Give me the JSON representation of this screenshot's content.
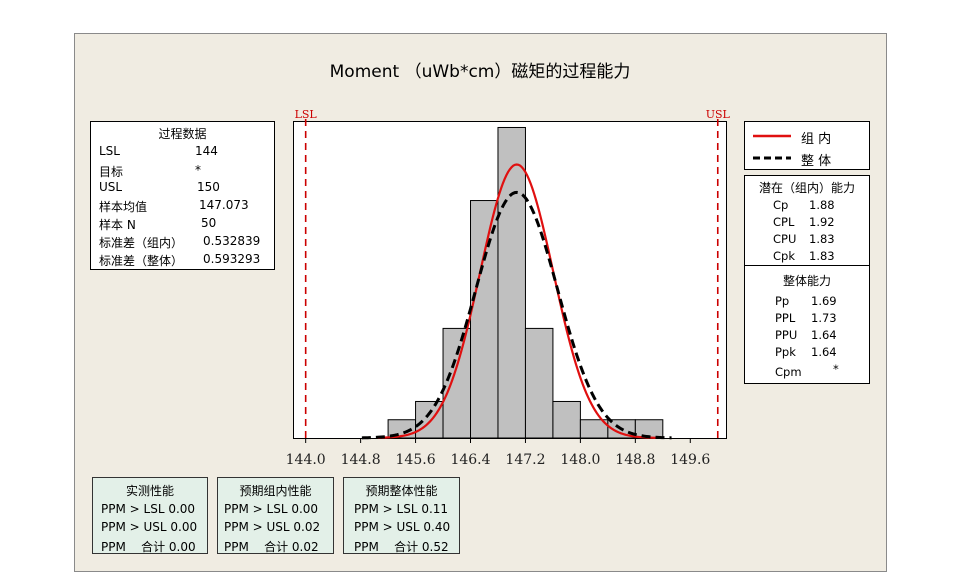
{
  "title": "Moment （uWb*cm）磁矩的过程能力",
  "process_data": {
    "header": "过程数据",
    "rows": [
      {
        "label": "LSL",
        "value": "144"
      },
      {
        "label": "目标",
        "value": "*"
      },
      {
        "label": "USL",
        "value": "150"
      },
      {
        "label": "样本均值",
        "value": "147.073"
      },
      {
        "label": "样本 N",
        "value": "50"
      },
      {
        "label": "标准差（组内）",
        "value": "0.532839"
      },
      {
        "label": "标准差（整体）",
        "value": "0.593293"
      }
    ]
  },
  "legend": {
    "items": [
      {
        "label": "组 内",
        "color": "#e01010",
        "style": "solid"
      },
      {
        "label": "整 体",
        "color": "#000000",
        "style": "dashed"
      }
    ]
  },
  "potential": {
    "header": "潜在（组内）能力",
    "rows": [
      {
        "label": "Cp",
        "value": "1.88"
      },
      {
        "label": "CPL",
        "value": "1.92"
      },
      {
        "label": "CPU",
        "value": "1.83"
      },
      {
        "label": "Cpk",
        "value": "1.83"
      }
    ]
  },
  "overall": {
    "header": "整体能力",
    "rows": [
      {
        "label": "Pp",
        "value": "1.69"
      },
      {
        "label": "PPL",
        "value": "1.73"
      },
      {
        "label": "PPU",
        "value": "1.64"
      },
      {
        "label": "Ppk",
        "value": "1.64"
      },
      {
        "label": "Cpm",
        "value": "*"
      }
    ]
  },
  "performance": [
    {
      "header": "实测性能",
      "rows": [
        "PPM > LSL 0.00",
        "PPM > USL 0.00",
        "PPM    合计 0.00"
      ]
    },
    {
      "header": "预期组内性能",
      "rows": [
        "PPM > LSL 0.00",
        "PPM > USL 0.02",
        "PPM    合计 0.02"
      ]
    },
    {
      "header": "预期整体性能",
      "rows": [
        "PPM > LSL 0.11",
        "PPM > USL 0.40",
        "PPM    合计 0.52"
      ]
    }
  ],
  "chart_data": {
    "type": "bar",
    "title": "Moment （uWb*cm）磁矩的过程能力",
    "xlabel": "",
    "ylabel": "",
    "xlim": [
      143.83,
      150.12
    ],
    "ylim": [
      0,
      17.3
    ],
    "x_ticks": [
      "144.0",
      "144.8",
      "145.6",
      "146.4",
      "147.2",
      "148.0",
      "148.8",
      "149.6"
    ],
    "x_tick_values": [
      144.0,
      144.8,
      145.6,
      146.4,
      147.2,
      148.0,
      148.8,
      149.6
    ],
    "bin_width": 0.4,
    "bins": [
      {
        "start": 145.2,
        "count": 1
      },
      {
        "start": 145.6,
        "count": 2
      },
      {
        "start": 146.0,
        "count": 6
      },
      {
        "start": 146.4,
        "count": 13
      },
      {
        "start": 146.8,
        "count": 17
      },
      {
        "start": 147.2,
        "count": 6
      },
      {
        "start": 147.6,
        "count": 2
      },
      {
        "start": 148.0,
        "count": 1
      },
      {
        "start": 148.4,
        "count": 1
      },
      {
        "start": 148.8,
        "count": 1
      }
    ],
    "spec_limits": [
      {
        "label": "LSL",
        "value": 144
      },
      {
        "label": "USL",
        "value": 150
      }
    ],
    "sample_n": 50,
    "mean": 147.073,
    "series": [
      {
        "name": "组 内",
        "type": "normal_curve",
        "mean": 147.073,
        "sd": 0.532839,
        "color": "#e01010"
      },
      {
        "name": "整 体",
        "type": "normal_curve",
        "mean": 147.073,
        "sd": 0.593293,
        "color": "#000000"
      }
    ],
    "bar_color": "#c0c0c0",
    "spec_color": "#cc0000"
  }
}
